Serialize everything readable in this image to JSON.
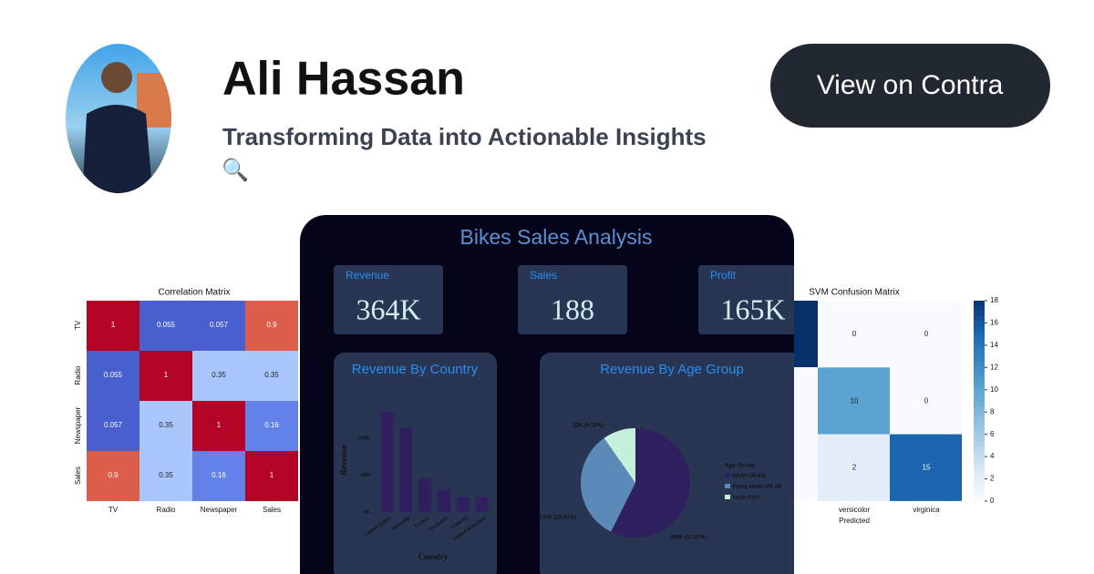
{
  "profile": {
    "name": "Ali Hassan",
    "tagline": "Transforming Data into Actionable Insights",
    "icon": "🔍"
  },
  "button": {
    "label": "View on Contra"
  },
  "correlation_matrix": {
    "title": "Correlation Matrix",
    "labels": [
      "TV",
      "Radio",
      "Newspaper",
      "Sales"
    ],
    "cells": [
      [
        1,
        0.055,
        0.057,
        0.9
      ],
      [
        0.055,
        1,
        0.35,
        0.35
      ],
      [
        0.057,
        0.35,
        1,
        0.16
      ],
      [
        0.9,
        0.35,
        0.16,
        1
      ]
    ]
  },
  "dashboard": {
    "title": "Bikes Sales Analysis",
    "kpis": [
      {
        "label": "Revenue",
        "value": "364K"
      },
      {
        "label": "Sales",
        "value": "188"
      },
      {
        "label": "Profit",
        "value": "165K"
      }
    ],
    "country_chart": {
      "title": "Revenue By Country",
      "x_label": "Country",
      "y_label": "Revenue",
      "categories": [
        "United States",
        "Australia",
        "France",
        "Germany",
        "Canada",
        "United Kingdom"
      ],
      "values": [
        136000,
        114000,
        46000,
        30000,
        20000,
        20000
      ],
      "color": "#2f1f5e",
      "yticks": [
        {
          "value": 0,
          "label": "0K"
        },
        {
          "value": 50000,
          "label": "50K"
        },
        {
          "value": 100000,
          "label": "100K"
        }
      ]
    },
    "age_chart": {
      "title": "Revenue By Age Group",
      "legend_title": "Age_Group",
      "slices": [
        {
          "label": "Adults (35-64)",
          "value": 57.37,
          "value_label": "209K (57.37%)",
          "color": "#2e1f5e"
        },
        {
          "label": "Young Adults (25-34)",
          "value": 32.91,
          "value_label": "120K (32.91%)",
          "color": "#5b8ab8"
        },
        {
          "label": "Youth (<25)",
          "value": 9.72,
          "value_label": "35K (9.72%)",
          "color": "#c4f0dc"
        }
      ]
    }
  },
  "confusion_matrix": {
    "title": "SVM Confusion Matrix",
    "x_label": "Predicted",
    "x_categories": [
      "versicolor",
      "virginica"
    ],
    "cells": [
      [
        0,
        0
      ],
      [
        10,
        0
      ],
      [
        2,
        15
      ]
    ],
    "colorbar": {
      "ylim": [
        0,
        18
      ],
      "ticks": [
        0,
        2,
        4,
        6,
        8,
        10,
        12,
        14,
        16,
        18
      ]
    }
  }
}
